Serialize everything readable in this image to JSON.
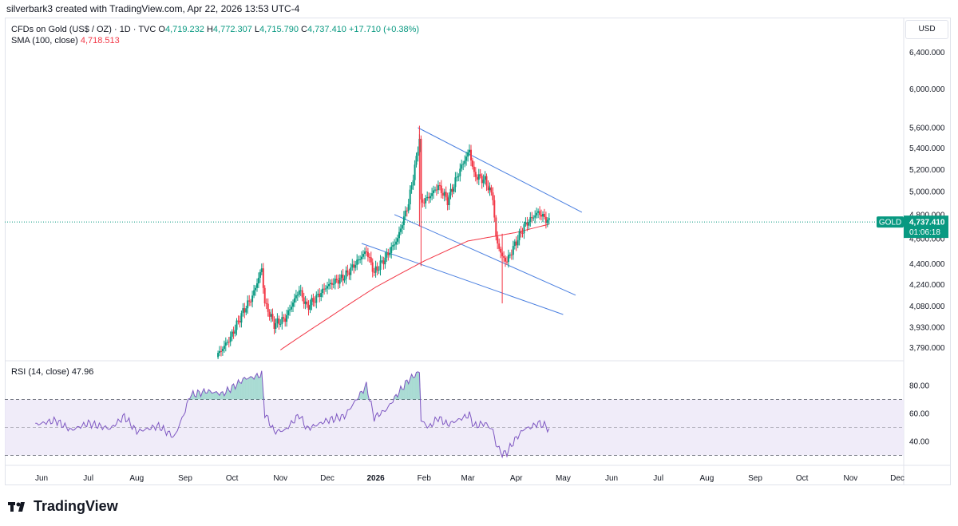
{
  "header": {
    "attribution": "silverbark3 created with TradingView.com, Apr 22, 2026 13:53 UTC-4"
  },
  "legend": {
    "symbol": "CFDs on Gold (US$ / OZ) · 1D · TVC",
    "open_label": "O",
    "open": "4,719.232",
    "high_label": "H",
    "high": "4,772.307",
    "low_label": "L",
    "low": "4,715.790",
    "close_label": "C",
    "close": "4,737.410",
    "change": "+17.710 (+0.38%)",
    "sma_label": "SMA (100, close)",
    "sma_value": "4,718.513",
    "rsi_label": "RSI (14, close)",
    "rsi_value": "47.96"
  },
  "currency": "USD",
  "price_tag": {
    "symbol": "GOLD",
    "price": "4,737.410",
    "countdown": "01:06:18"
  },
  "brand": "TradingView",
  "colors": {
    "up": "#089981",
    "down": "#f23645",
    "sma": "#f23645",
    "channel": "#4a7fe0",
    "rsi": "#7e57c2",
    "rsi_band": "#ece7f8"
  },
  "chart_data": {
    "type": "candlestick",
    "price_axis_ticks": [
      6400,
      6000,
      5600,
      5400,
      5200,
      5000,
      4800,
      4600,
      4400,
      4240,
      4080,
      3930,
      3790
    ],
    "price_axis_labels": [
      "6,400.000",
      "6,000.000",
      "5,600.000",
      "5,400.000",
      "5,200.000",
      "5,000.000",
      "4,800.000",
      "4,600.000",
      "4,400.000",
      "4,240.000",
      "4,080.000",
      "3,930.000",
      "3,790.000"
    ],
    "scale": "log",
    "time_labels": [
      "Jun",
      "Jul",
      "Aug",
      "Sep",
      "Oct",
      "Nov",
      "Dec",
      "2026",
      "Feb",
      "Mar",
      "Apr",
      "May",
      "Jun",
      "Jul",
      "Aug",
      "Sep",
      "Oct",
      "Nov",
      "Dec"
    ],
    "price_close_anchors": [
      [
        "2025-09-22",
        3745
      ],
      [
        "2025-09-30",
        3858
      ],
      [
        "2025-10-08",
        4040
      ],
      [
        "2025-10-14",
        4150
      ],
      [
        "2025-10-20",
        4360
      ],
      [
        "2025-10-22",
        4100
      ],
      [
        "2025-10-28",
        3950
      ],
      [
        "2025-11-04",
        3990
      ],
      [
        "2025-11-13",
        4200
      ],
      [
        "2025-11-18",
        4070
      ],
      [
        "2025-12-01",
        4230
      ],
      [
        "2025-12-12",
        4300
      ],
      [
        "2025-12-26",
        4500
      ],
      [
        "2025-12-31",
        4330
      ],
      [
        "2026-01-08",
        4460
      ],
      [
        "2026-01-15",
        4600
      ],
      [
        "2026-01-22",
        4900
      ],
      [
        "2026-01-27",
        5300
      ],
      [
        "2026-01-29",
        5500
      ],
      [
        "2026-01-30",
        4900
      ],
      [
        "2026-02-04",
        4950
      ],
      [
        "2026-02-10",
        5050
      ],
      [
        "2026-02-16",
        4920
      ],
      [
        "2026-02-24",
        5200
      ],
      [
        "2026-03-02",
        5380
      ],
      [
        "2026-03-05",
        5150
      ],
      [
        "2026-03-12",
        5100
      ],
      [
        "2026-03-17",
        4950
      ],
      [
        "2026-03-19",
        4600
      ],
      [
        "2026-03-23",
        4450
      ],
      [
        "2026-03-26",
        4420
      ],
      [
        "2026-03-31",
        4550
      ],
      [
        "2026-04-06",
        4700
      ],
      [
        "2026-04-10",
        4760
      ],
      [
        "2026-04-15",
        4820
      ],
      [
        "2026-04-20",
        4760
      ],
      [
        "2026-04-22",
        4737
      ]
    ],
    "sma_100": [
      [
        "2025-11-01",
        3775
      ],
      [
        "2025-12-01",
        3990
      ],
      [
        "2026-01-01",
        4220
      ],
      [
        "2026-02-01",
        4420
      ],
      [
        "2026-03-01",
        4580
      ],
      [
        "2026-04-01",
        4650
      ],
      [
        "2026-04-22",
        4718.513
      ]
    ],
    "channel_lines": [
      [
        [
          "2026-01-28",
          5600
        ],
        [
          "2026-05-13",
          4820
        ]
      ],
      [
        [
          "2026-01-13",
          4800
        ],
        [
          "2026-05-09",
          4160
        ]
      ],
      [
        [
          "2025-12-23",
          4560
        ],
        [
          "2026-05-01",
          4020
        ]
      ]
    ],
    "rsi_levels": [
      70,
      50,
      30
    ],
    "rsi_ticks": [
      80,
      60,
      40
    ],
    "rsi_anchors": [
      [
        "2025-05-28",
        52
      ],
      [
        "2025-06-10",
        55
      ],
      [
        "2025-06-20",
        48
      ],
      [
        "2025-07-01",
        53
      ],
      [
        "2025-07-15",
        49
      ],
      [
        "2025-07-24",
        58
      ],
      [
        "2025-08-01",
        47
      ],
      [
        "2025-08-15",
        51
      ],
      [
        "2025-08-25",
        43
      ],
      [
        "2025-09-01",
        62
      ],
      [
        "2025-09-04",
        73
      ],
      [
        "2025-09-15",
        76
      ],
      [
        "2025-09-25",
        74
      ],
      [
        "2025-10-03",
        80
      ],
      [
        "2025-10-09",
        85
      ],
      [
        "2025-10-15",
        86
      ],
      [
        "2025-10-20",
        88
      ],
      [
        "2025-10-22",
        60
      ],
      [
        "2025-10-28",
        47
      ],
      [
        "2025-11-04",
        48
      ],
      [
        "2025-11-13",
        59
      ],
      [
        "2025-11-18",
        49
      ],
      [
        "2025-12-01",
        55
      ],
      [
        "2025-12-12",
        58
      ],
      [
        "2025-12-26",
        80
      ],
      [
        "2025-12-31",
        57
      ],
      [
        "2026-01-08",
        63
      ],
      [
        "2026-01-15",
        74
      ],
      [
        "2026-01-22",
        84
      ],
      [
        "2026-01-29",
        90
      ],
      [
        "2026-01-30",
        55
      ],
      [
        "2026-02-04",
        50
      ],
      [
        "2026-02-10",
        57
      ],
      [
        "2026-02-16",
        52
      ],
      [
        "2026-02-24",
        56
      ],
      [
        "2026-03-02",
        59
      ],
      [
        "2026-03-05",
        51
      ],
      [
        "2026-03-12",
        53
      ],
      [
        "2026-03-17",
        48
      ],
      [
        "2026-03-19",
        38
      ],
      [
        "2026-03-23",
        31
      ],
      [
        "2026-03-26",
        32
      ],
      [
        "2026-03-31",
        41
      ],
      [
        "2026-04-06",
        49
      ],
      [
        "2026-04-10",
        50
      ],
      [
        "2026-04-15",
        53
      ],
      [
        "2026-04-20",
        51
      ],
      [
        "2026-04-22",
        47.96
      ]
    ]
  }
}
